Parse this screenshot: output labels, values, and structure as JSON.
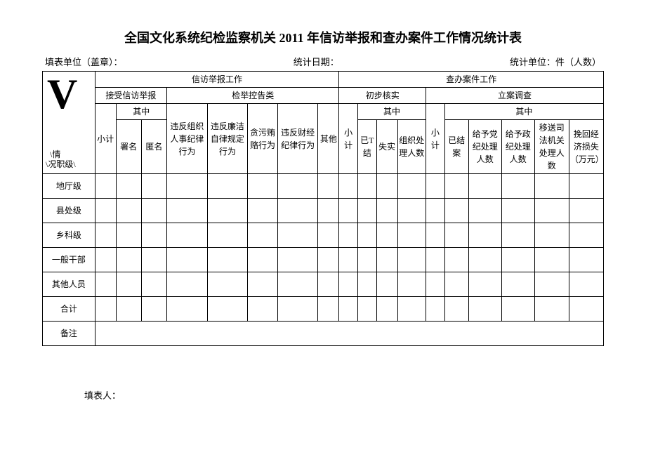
{
  "title": "全国文化系统纪检监察机关 2011 年信访举报和查办案件工作情况统计表",
  "meta": {
    "fill_unit": "填表单位（盖章）：",
    "stat_date": "统计日期：",
    "stat_unit": "统计单位：件（人数）"
  },
  "corner": {
    "v": "V",
    "line1": "\\情",
    "line2": "\\况职级\\"
  },
  "headers": {
    "group_xinfang": "信访举报工作",
    "group_chaoban": "查办案件工作",
    "accept": "接受信访举报",
    "jianshu": "检举控告类",
    "chubu": "初步核实",
    "lian": "立案调查",
    "xiaoji": "小计",
    "qizhong": "其中",
    "shuming": "署名",
    "niming": "匿名",
    "c1": "违反组织人事纪律行为",
    "c2": "违反廉洁自律规定行为",
    "c3": "贪污贿赂行为",
    "c4": "违反财经纪律行为",
    "c5": "其他",
    "yiTjie": "已T结",
    "shishi": "失实",
    "zuzhichuli": "组织处理人数",
    "yijie": "已结案",
    "dangji": "给予党纪处理人数",
    "zhengji": "给予政纪处理人数",
    "yisong": "移送司法机关处理人数",
    "wanhui": "挽回经济损失（万元）"
  },
  "rows": [
    "地厅级",
    "县处级",
    "乡科级",
    "一般干部",
    "其他人员",
    "合计",
    "备注"
  ],
  "footer": {
    "filler": "填表人："
  }
}
